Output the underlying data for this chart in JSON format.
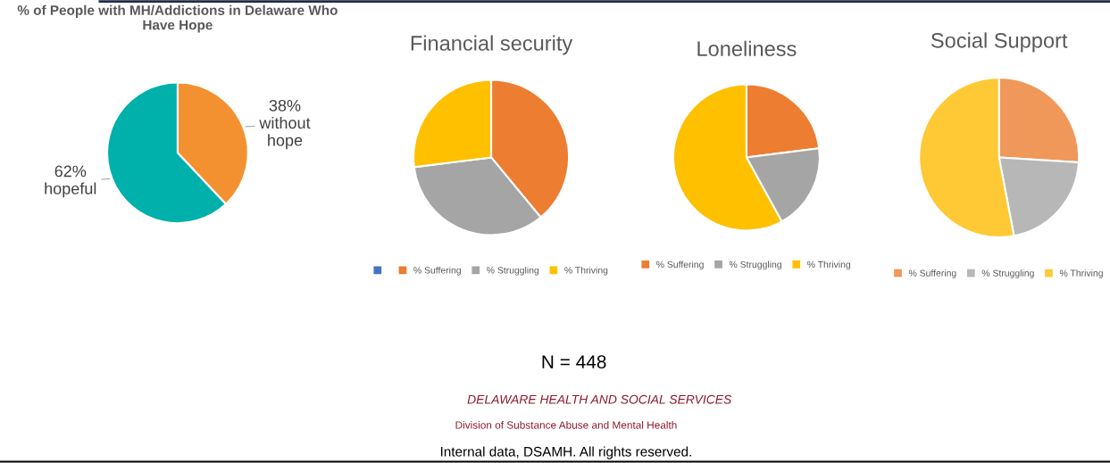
{
  "chart_data": [
    {
      "type": "pie",
      "title": "% of People with MH/Addictions in Delaware Who Have Hope",
      "categories": [
        "without hope",
        "hopeful"
      ],
      "values": [
        38,
        62
      ],
      "colors": [
        "#f39131",
        "#00b0aa"
      ],
      "value_labels": [
        "38%",
        "62%"
      ],
      "legend": false,
      "annotations": [
        "N = 448",
        "DELAWARE HEALTH AND SOCIAL SERVICES",
        "Division of Substance Abuse and Mental Health",
        "Internal data, DSAMH. All rights reserved."
      ]
    },
    {
      "type": "pie",
      "title": "Financial security",
      "categories": [
        null,
        "% Suffering",
        "% Struggling",
        "% Thriving"
      ],
      "values": [
        0,
        39,
        34,
        27
      ],
      "colors": [
        "#4472c4",
        "#ed7d31",
        "#a5a5a5",
        "#ffc000"
      ],
      "legend": "bottom"
    },
    {
      "type": "pie",
      "title": "Loneliness",
      "categories": [
        "% Suffering",
        "% Struggling",
        "% Thriving"
      ],
      "values": [
        23,
        19,
        58
      ],
      "colors": [
        "#ed7d31",
        "#a5a5a5",
        "#ffc000"
      ],
      "legend": "bottom"
    },
    {
      "type": "pie",
      "title": "Social Support",
      "categories": [
        "% Suffering",
        "% Struggling",
        "% Thriving"
      ],
      "values": [
        26,
        21,
        53
      ],
      "colors": [
        "#f0975a",
        "#b7b7b7",
        "#ffc935"
      ],
      "legend": "bottom"
    }
  ]
}
